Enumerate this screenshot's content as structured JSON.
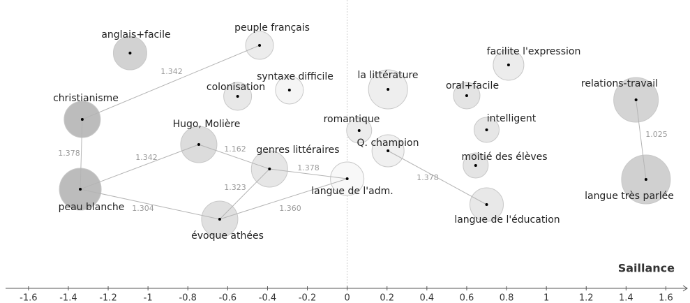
{
  "chart_data": {
    "type": "network",
    "x_label": "Saillance",
    "xlim": [
      -1.715,
      1.707
    ],
    "xticks": [
      -1.6,
      -1.4,
      -1.2,
      -1,
      -0.8,
      -0.6,
      -0.4,
      -0.2,
      0,
      0.2,
      0.4,
      0.6,
      0.8,
      1,
      1.2,
      1.4,
      1.6
    ],
    "nodes": [
      {
        "name": "anglais+facile",
        "x": -1.09,
        "size": 24,
        "color": "#d2d2d2"
      },
      {
        "name": "peuple français",
        "x": -0.44,
        "size": 20,
        "color": "#ececec"
      },
      {
        "name": "christianisme",
        "x": -1.33,
        "size": 26,
        "color": "#bcbcbc"
      },
      {
        "name": "syntaxe difficile",
        "x": -0.29,
        "size": 20,
        "color": "#f5f5f5"
      },
      {
        "name": "colonisation",
        "x": -0.55,
        "size": 20,
        "color": "#e8e8e8"
      },
      {
        "name": "la littérature",
        "x": 0.205,
        "size": 28,
        "color": "#eeeeee"
      },
      {
        "name": "oral+facile",
        "x": 0.6,
        "size": 19,
        "color": "#e4e4e4"
      },
      {
        "name": "facilite l'expression",
        "x": 0.81,
        "size": 22,
        "color": "#ececec"
      },
      {
        "name": "relations-travail",
        "x": 1.45,
        "size": 32,
        "color": "#d4d4d4"
      },
      {
        "name": "romantique",
        "x": 0.06,
        "size": 18,
        "color": "#ececec"
      },
      {
        "name": "intelligent",
        "x": 0.7,
        "size": 18,
        "color": "#e6e6e6"
      },
      {
        "name": "Hugo, Molière",
        "x": -0.745,
        "size": 26,
        "color": "#dcdcdc"
      },
      {
        "name": "Q. champion",
        "x": 0.205,
        "size": 23,
        "color": "#f0f0f0"
      },
      {
        "name": "genres littéraires",
        "x": -0.39,
        "size": 26,
        "color": "#e6e6e6"
      },
      {
        "name": "moitié des élèves",
        "x": 0.645,
        "size": 18,
        "color": "#e4e4e4"
      },
      {
        "name": "langue de l'adm.",
        "x": 0,
        "size": 24,
        "color": "#f8f8f8"
      },
      {
        "name": "langue très parlée",
        "x": 1.5,
        "size": 35,
        "color": "#d0d0d0"
      },
      {
        "name": "peau blanche",
        "x": -1.34,
        "size": 30,
        "color": "#bcbcbc"
      },
      {
        "name": "langue de l'éducation",
        "x": 0.7,
        "size": 24,
        "color": "#e8e8e8"
      },
      {
        "name": "évoque athées",
        "x": -0.64,
        "size": 26,
        "color": "#e0e0e0"
      }
    ],
    "edges": [
      {
        "source": "christianisme",
        "target": "peuple français",
        "weight": 1.342
      },
      {
        "source": "christianisme",
        "target": "peau blanche",
        "weight": 1.378
      },
      {
        "source": "peau blanche",
        "target": "Hugo, Molière",
        "weight": 1.342
      },
      {
        "source": "peau blanche",
        "target": "évoque athées",
        "weight": 1.304
      },
      {
        "source": "Hugo, Molière",
        "target": "genres littéraires",
        "weight": 1.162
      },
      {
        "source": "genres littéraires",
        "target": "évoque athées",
        "weight": 1.323
      },
      {
        "source": "genres littéraires",
        "target": "langue de l'adm.",
        "weight": 1.378
      },
      {
        "source": "évoque athées",
        "target": "langue de l'adm.",
        "weight": {
          "value": 1.36,
          "label": "1.360"
        }
      },
      {
        "source": "Q. champion",
        "target": "langue de l'éducation",
        "weight": 1.378
      },
      {
        "source": "relations-travail",
        "target": "langue très parlée",
        "weight": 1.025
      }
    ]
  }
}
